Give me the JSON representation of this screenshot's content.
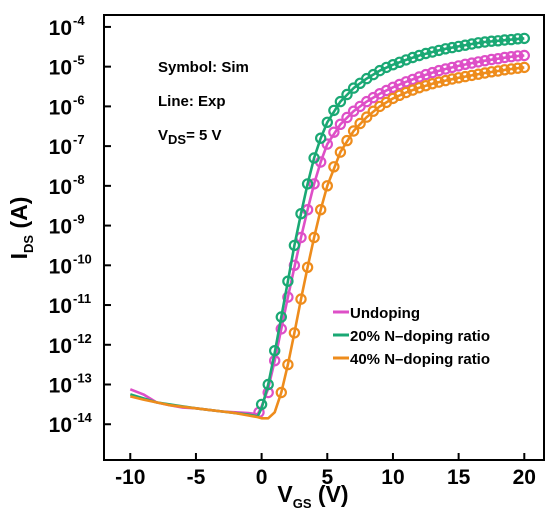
{
  "chart_data": {
    "type": "line",
    "xlabel": "V",
    "xlabel_sub": "GS",
    "xlabel_unit": " (V)",
    "ylabel": "I",
    "ylabel_sub": "DS",
    "ylabel_unit": " (A)",
    "xlim": [
      -12,
      21.5
    ],
    "ylim_log10": [
      -14.9,
      -3.7
    ],
    "y_scale": "log",
    "x_ticks": [
      -10,
      -5,
      0,
      5,
      10,
      15,
      20
    ],
    "x_tick_labels": [
      "-10",
      "-5",
      "0",
      "5",
      "10",
      "15",
      "20"
    ],
    "y_ticks": [
      -14,
      -13,
      -12,
      -11,
      -10,
      -9,
      -8,
      -7,
      -6,
      -5,
      -4
    ],
    "y_tick_base": "10",
    "y_tick_exps": [
      "-14",
      "-13",
      "-12",
      "-11",
      "-10",
      "-9",
      "-8",
      "-7",
      "-6",
      "-5",
      "-4"
    ],
    "annotations": [
      {
        "text": "Symbol: Sim"
      },
      {
        "text": "Line: Exp"
      },
      {
        "main": "V",
        "sub": "DS",
        "rest": "= 5 V"
      }
    ],
    "legend_position": "right",
    "series": [
      {
        "name": "Undoping",
        "color": "#de4fc7",
        "line": [
          [
            -10,
            -13.12
          ],
          [
            -9,
            -13.25
          ],
          [
            -8,
            -13.45
          ],
          [
            -7,
            -13.52
          ],
          [
            -6,
            -13.58
          ],
          [
            -5,
            -13.6
          ],
          [
            -4,
            -13.64
          ],
          [
            -3,
            -13.68
          ],
          [
            -2,
            -13.7
          ],
          [
            -1,
            -13.72
          ],
          [
            -0.3,
            -13.75
          ],
          [
            0,
            -13.55
          ],
          [
            0.5,
            -13.1
          ],
          [
            1,
            -12.4
          ],
          [
            1.5,
            -11.6
          ],
          [
            2,
            -10.8
          ],
          [
            2.5,
            -10.05
          ],
          [
            3,
            -9.3
          ],
          [
            3.5,
            -8.6
          ],
          [
            4,
            -7.95
          ],
          [
            4.5,
            -7.4
          ],
          [
            5,
            -6.95
          ],
          [
            6,
            -6.45
          ],
          [
            7,
            -6.12
          ],
          [
            8,
            -5.88
          ],
          [
            9,
            -5.68
          ],
          [
            10,
            -5.52
          ],
          [
            11,
            -5.38
          ],
          [
            12,
            -5.26
          ],
          [
            13,
            -5.15
          ],
          [
            14,
            -5.06
          ],
          [
            15,
            -4.98
          ],
          [
            16,
            -4.91
          ],
          [
            17,
            -4.85
          ],
          [
            18,
            -4.8
          ],
          [
            19,
            -4.75
          ],
          [
            20,
            -4.72
          ]
        ],
        "markers": [
          [
            -0.2,
            -13.7
          ],
          [
            0.5,
            -13.2
          ],
          [
            1,
            -12.4
          ],
          [
            1.5,
            -11.6
          ],
          [
            2,
            -10.8
          ],
          [
            2.5,
            -10.0
          ],
          [
            3,
            -9.3
          ],
          [
            3.5,
            -8.6
          ],
          [
            4,
            -7.95
          ],
          [
            4.5,
            -7.4
          ],
          [
            5,
            -6.95
          ],
          [
            5.5,
            -6.65
          ],
          [
            6,
            -6.45
          ],
          [
            6.5,
            -6.28
          ],
          [
            7,
            -6.12
          ],
          [
            7.5,
            -6.0
          ],
          [
            8,
            -5.88
          ],
          [
            8.5,
            -5.78
          ],
          [
            9,
            -5.68
          ],
          [
            9.5,
            -5.6
          ],
          [
            10,
            -5.52
          ],
          [
            10.5,
            -5.45
          ],
          [
            11,
            -5.38
          ],
          [
            11.5,
            -5.32
          ],
          [
            12,
            -5.26
          ],
          [
            12.5,
            -5.2
          ],
          [
            13,
            -5.15
          ],
          [
            13.5,
            -5.1
          ],
          [
            14,
            -5.06
          ],
          [
            14.5,
            -5.02
          ],
          [
            15,
            -4.98
          ],
          [
            15.5,
            -4.94
          ],
          [
            16,
            -4.91
          ],
          [
            16.5,
            -4.88
          ],
          [
            17,
            -4.85
          ],
          [
            17.5,
            -4.82
          ],
          [
            18,
            -4.8
          ],
          [
            18.5,
            -4.77
          ],
          [
            19,
            -4.75
          ],
          [
            19.5,
            -4.73
          ],
          [
            20,
            -4.72
          ]
        ]
      },
      {
        "name": "20% N–doping ratio",
        "color": "#1aa874",
        "line": [
          [
            -10,
            -13.25
          ],
          [
            -9,
            -13.35
          ],
          [
            -8,
            -13.45
          ],
          [
            -7,
            -13.5
          ],
          [
            -6,
            -13.55
          ],
          [
            -5,
            -13.6
          ],
          [
            -4,
            -13.64
          ],
          [
            -3,
            -13.68
          ],
          [
            -2,
            -13.72
          ],
          [
            -1,
            -13.76
          ],
          [
            -0.3,
            -13.8
          ],
          [
            0,
            -13.6
          ],
          [
            0.5,
            -13.0
          ],
          [
            1,
            -12.2
          ],
          [
            1.5,
            -11.3
          ],
          [
            2,
            -10.4
          ],
          [
            2.5,
            -9.5
          ],
          [
            3,
            -8.7
          ],
          [
            3.5,
            -7.95
          ],
          [
            4,
            -7.3
          ],
          [
            4.5,
            -6.8
          ],
          [
            5,
            -6.4
          ],
          [
            6,
            -5.88
          ],
          [
            7,
            -5.54
          ],
          [
            8,
            -5.3
          ],
          [
            9,
            -5.1
          ],
          [
            10,
            -4.95
          ],
          [
            11,
            -4.83
          ],
          [
            12,
            -4.72
          ],
          [
            13,
            -4.63
          ],
          [
            14,
            -4.55
          ],
          [
            15,
            -4.49
          ],
          [
            16,
            -4.43
          ],
          [
            17,
            -4.38
          ],
          [
            18,
            -4.35
          ],
          [
            19,
            -4.32
          ],
          [
            20,
            -4.29
          ]
        ],
        "markers": [
          [
            0,
            -13.5
          ],
          [
            0.5,
            -13.0
          ],
          [
            1,
            -12.15
          ],
          [
            1.5,
            -11.3
          ],
          [
            2,
            -10.4
          ],
          [
            2.5,
            -9.5
          ],
          [
            3,
            -8.7
          ],
          [
            3.5,
            -7.95
          ],
          [
            4,
            -7.3
          ],
          [
            4.5,
            -6.8
          ],
          [
            5,
            -6.4
          ],
          [
            5.5,
            -6.1
          ],
          [
            6,
            -5.88
          ],
          [
            6.5,
            -5.7
          ],
          [
            7,
            -5.54
          ],
          [
            7.5,
            -5.42
          ],
          [
            8,
            -5.3
          ],
          [
            8.5,
            -5.2
          ],
          [
            9,
            -5.1
          ],
          [
            9.5,
            -5.02
          ],
          [
            10,
            -4.95
          ],
          [
            10.5,
            -4.89
          ],
          [
            11,
            -4.83
          ],
          [
            11.5,
            -4.77
          ],
          [
            12,
            -4.72
          ],
          [
            12.5,
            -4.67
          ],
          [
            13,
            -4.63
          ],
          [
            13.5,
            -4.59
          ],
          [
            14,
            -4.55
          ],
          [
            14.5,
            -4.52
          ],
          [
            15,
            -4.49
          ],
          [
            15.5,
            -4.46
          ],
          [
            16,
            -4.43
          ],
          [
            16.5,
            -4.4
          ],
          [
            17,
            -4.38
          ],
          [
            17.5,
            -4.36
          ],
          [
            18,
            -4.35
          ],
          [
            18.5,
            -4.33
          ],
          [
            19,
            -4.32
          ],
          [
            19.5,
            -4.3
          ],
          [
            20,
            -4.29
          ]
        ]
      },
      {
        "name": "40% N–doping ratio",
        "color": "#ee8c1c",
        "line": [
          [
            -10,
            -13.3
          ],
          [
            -9,
            -13.38
          ],
          [
            -8,
            -13.45
          ],
          [
            -7,
            -13.52
          ],
          [
            -6,
            -13.56
          ],
          [
            -5,
            -13.6
          ],
          [
            -4,
            -13.64
          ],
          [
            -3,
            -13.68
          ],
          [
            -2,
            -13.72
          ],
          [
            -1,
            -13.78
          ],
          [
            -0.3,
            -13.82
          ],
          [
            0,
            -13.85
          ],
          [
            0.5,
            -13.85
          ],
          [
            1,
            -13.7
          ],
          [
            1.5,
            -13.2
          ],
          [
            2,
            -12.5
          ],
          [
            2.5,
            -11.7
          ],
          [
            3,
            -10.85
          ],
          [
            3.5,
            -10.05
          ],
          [
            4,
            -9.3
          ],
          [
            4.5,
            -8.6
          ],
          [
            5,
            -8.0
          ],
          [
            6,
            -7.15
          ],
          [
            7,
            -6.62
          ],
          [
            8,
            -6.27
          ],
          [
            9,
            -6.0
          ],
          [
            10,
            -5.8
          ],
          [
            11,
            -5.65
          ],
          [
            12,
            -5.53
          ],
          [
            13,
            -5.43
          ],
          [
            14,
            -5.35
          ],
          [
            15,
            -5.28
          ],
          [
            16,
            -5.22
          ],
          [
            17,
            -5.16
          ],
          [
            18,
            -5.11
          ],
          [
            19,
            -5.06
          ],
          [
            20,
            -5.02
          ]
        ],
        "markers": [
          [
            1.5,
            -13.2
          ],
          [
            2,
            -12.5
          ],
          [
            2.5,
            -11.7
          ],
          [
            3,
            -10.85
          ],
          [
            3.5,
            -10.05
          ],
          [
            4,
            -9.3
          ],
          [
            4.5,
            -8.6
          ],
          [
            5,
            -8.0
          ],
          [
            5.5,
            -7.52
          ],
          [
            6,
            -7.15
          ],
          [
            6.5,
            -6.86
          ],
          [
            7,
            -6.62
          ],
          [
            7.5,
            -6.43
          ],
          [
            8,
            -6.27
          ],
          [
            8.5,
            -6.12
          ],
          [
            9,
            -6.0
          ],
          [
            9.5,
            -5.9
          ],
          [
            10,
            -5.8
          ],
          [
            10.5,
            -5.72
          ],
          [
            11,
            -5.65
          ],
          [
            11.5,
            -5.59
          ],
          [
            12,
            -5.53
          ],
          [
            12.5,
            -5.48
          ],
          [
            13,
            -5.43
          ],
          [
            13.5,
            -5.39
          ],
          [
            14,
            -5.35
          ],
          [
            14.5,
            -5.31
          ],
          [
            15,
            -5.28
          ],
          [
            15.5,
            -5.25
          ],
          [
            16,
            -5.22
          ],
          [
            16.5,
            -5.19
          ],
          [
            17,
            -5.16
          ],
          [
            17.5,
            -5.13
          ],
          [
            18,
            -5.11
          ],
          [
            18.5,
            -5.08
          ],
          [
            19,
            -5.06
          ],
          [
            19.5,
            -5.04
          ],
          [
            20,
            -5.02
          ]
        ]
      }
    ]
  }
}
